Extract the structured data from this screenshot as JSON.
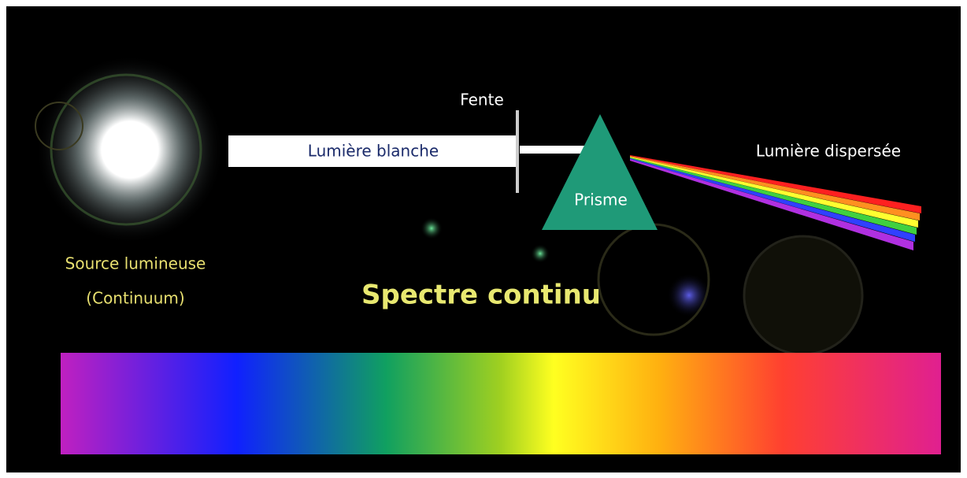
{
  "labels": {
    "slit": "Fente",
    "white_light": "Lumière blanche",
    "dispersed_light": "Lumière dispersée",
    "prism": "Prisme",
    "source": "Source lumineuse",
    "source_note": "(Continuum)",
    "title": "Spectre continu"
  }
}
